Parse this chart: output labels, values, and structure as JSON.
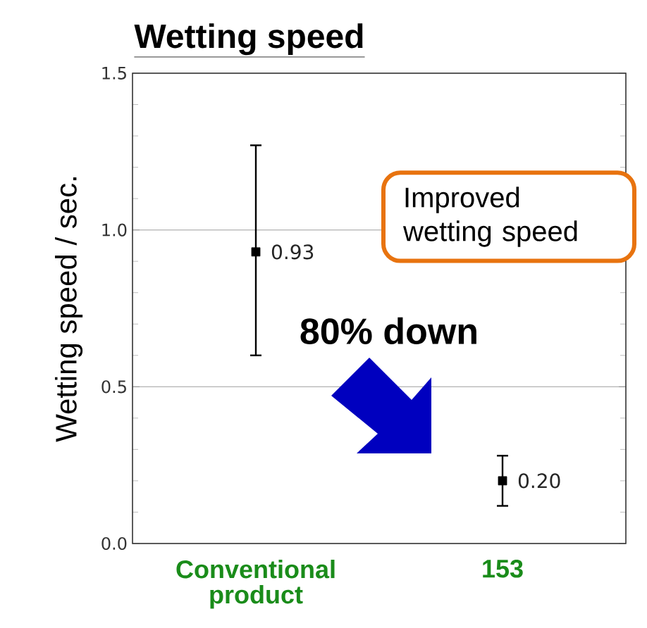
{
  "chart_data": {
    "type": "scatter",
    "title": "Wetting speed",
    "ylabel": "Wetting speed / sec.",
    "categories": [
      "Conventional product",
      "153"
    ],
    "series": [
      {
        "color": "#000000",
        "values": [
          0.93,
          0.2
        ],
        "value_labels": [
          "0.93",
          "0.20"
        ],
        "errors": [
          [
            0.6,
            1.27
          ],
          [
            0.12,
            0.28
          ]
        ]
      }
    ],
    "ylim": [
      0,
      1.5
    ],
    "yticks": [
      {
        "value": 0,
        "label": "0.0"
      },
      {
        "value": 0.5,
        "label": "0.5"
      },
      {
        "value": 1,
        "label": "1.0"
      },
      {
        "value": 1.5,
        "label": "1.5"
      }
    ],
    "grid": "y",
    "marker": "square",
    "annotations": [
      "Improved wetting speed",
      "80% down"
    ]
  }
}
